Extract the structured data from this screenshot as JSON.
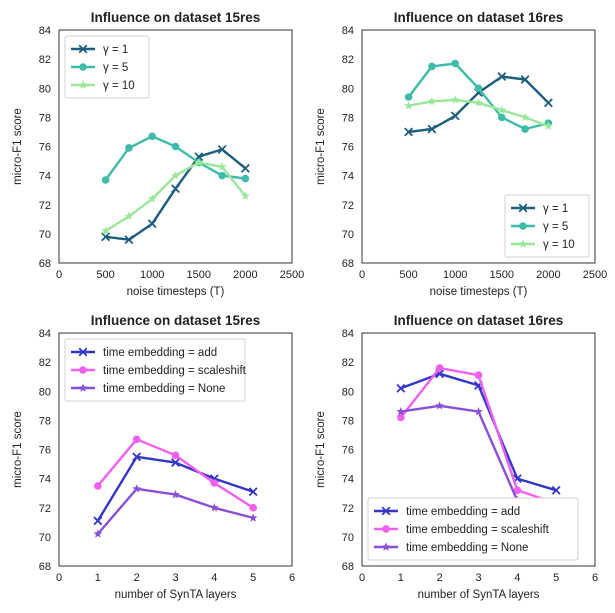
{
  "chart_data": [
    {
      "type": "line",
      "title": "Influence on dataset 15res",
      "xlabel": "noise timesteps (T)",
      "ylabel": "micro-F1 score",
      "xlim": [
        0,
        2500
      ],
      "ylim": [
        68,
        84
      ],
      "xticks": [
        0,
        500,
        1000,
        1500,
        2000,
        2500
      ],
      "yticks": [
        68,
        70,
        72,
        74,
        76,
        78,
        80,
        82,
        84
      ],
      "legend_position": "top-left",
      "series": [
        {
          "name": "γ = 1",
          "color": "#1d5d7e",
          "marker": "x",
          "x": [
            500,
            750,
            1000,
            1250,
            1500,
            1750,
            2000
          ],
          "y": [
            69.8,
            69.6,
            70.7,
            73.1,
            75.3,
            75.8,
            74.5
          ]
        },
        {
          "name": "γ = 5",
          "color": "#3ebca9",
          "marker": "circle",
          "x": [
            500,
            750,
            1000,
            1250,
            1500,
            1750,
            2000
          ],
          "y": [
            73.7,
            75.9,
            76.7,
            76.0,
            74.9,
            74.0,
            73.8
          ]
        },
        {
          "name": "γ = 10",
          "color": "#9be79a",
          "marker": "star",
          "x": [
            500,
            750,
            1000,
            1250,
            1500,
            1750,
            2000
          ],
          "y": [
            70.2,
            71.2,
            72.4,
            74.0,
            74.9,
            74.6,
            72.6
          ]
        }
      ]
    },
    {
      "type": "line",
      "title": "Influence on dataset 16res",
      "xlabel": "noise timesteps (T)",
      "ylabel": "micro-F1 score",
      "xlim": [
        0,
        2500
      ],
      "ylim": [
        68,
        84
      ],
      "xticks": [
        0,
        500,
        1000,
        1500,
        2000,
        2500
      ],
      "yticks": [
        68,
        70,
        72,
        74,
        76,
        78,
        80,
        82,
        84
      ],
      "legend_position": "bottom-right",
      "series": [
        {
          "name": "γ = 1",
          "color": "#1d5d7e",
          "marker": "x",
          "x": [
            500,
            750,
            1000,
            1250,
            1500,
            1750,
            2000
          ],
          "y": [
            77.0,
            77.2,
            78.1,
            79.7,
            80.8,
            80.6,
            79.0
          ]
        },
        {
          "name": "γ = 5",
          "color": "#3ebca9",
          "marker": "circle",
          "x": [
            500,
            750,
            1000,
            1250,
            1500,
            1750,
            2000
          ],
          "y": [
            79.4,
            81.5,
            81.7,
            80.0,
            78.0,
            77.2,
            77.6
          ]
        },
        {
          "name": "γ = 10",
          "color": "#9be79a",
          "marker": "star",
          "x": [
            500,
            750,
            1000,
            1250,
            1500,
            1750,
            2000
          ],
          "y": [
            78.8,
            79.1,
            79.2,
            79.0,
            78.5,
            78.0,
            77.4
          ]
        }
      ]
    },
    {
      "type": "line",
      "title": "Influence on dataset 15res",
      "xlabel": "number of SynTA layers",
      "ylabel": "micro-F1 score",
      "xlim": [
        0,
        6
      ],
      "ylim": [
        68,
        84
      ],
      "xticks": [
        0,
        1,
        2,
        3,
        4,
        5,
        6
      ],
      "yticks": [
        68,
        70,
        72,
        74,
        76,
        78,
        80,
        82,
        84
      ],
      "legend_position": "top-left",
      "series": [
        {
          "name": "time embedding = add",
          "color": "#3535c8",
          "marker": "x",
          "x": [
            1,
            2,
            3,
            4,
            5
          ],
          "y": [
            71.1,
            75.5,
            75.1,
            74.0,
            73.1
          ]
        },
        {
          "name": "time embedding = scaleshift",
          "color": "#f05ff0",
          "marker": "circle",
          "x": [
            1,
            2,
            3,
            4,
            5
          ],
          "y": [
            73.5,
            76.7,
            75.6,
            73.7,
            72.0
          ]
        },
        {
          "name": "time embedding = None",
          "color": "#8a4fd8",
          "marker": "star",
          "x": [
            1,
            2,
            3,
            4,
            5
          ],
          "y": [
            70.2,
            73.3,
            72.9,
            72.0,
            71.3
          ]
        }
      ]
    },
    {
      "type": "line",
      "title": "Influence on dataset 16res",
      "xlabel": "number of SynTA layers",
      "ylabel": "micro-F1 score",
      "xlim": [
        0,
        6
      ],
      "ylim": [
        68,
        84
      ],
      "xticks": [
        0,
        1,
        2,
        3,
        4,
        5,
        6
      ],
      "yticks": [
        68,
        70,
        72,
        74,
        76,
        78,
        80,
        82,
        84
      ],
      "legend_position": "bottom-left",
      "series": [
        {
          "name": "time embedding = add",
          "color": "#3535c8",
          "marker": "x",
          "x": [
            1,
            2,
            3,
            4,
            5
          ],
          "y": [
            80.2,
            81.2,
            80.4,
            74.0,
            73.2
          ]
        },
        {
          "name": "time embedding = scaleshift",
          "color": "#f05ff0",
          "marker": "circle",
          "x": [
            1,
            2,
            3,
            4,
            5
          ],
          "y": [
            78.2,
            81.6,
            81.1,
            73.2,
            72.3
          ]
        },
        {
          "name": "time embedding = None",
          "color": "#8a4fd8",
          "marker": "star",
          "x": [
            1,
            2,
            3,
            4,
            5
          ],
          "y": [
            78.6,
            79.0,
            78.6,
            72.5,
            72.2
          ]
        }
      ]
    }
  ]
}
